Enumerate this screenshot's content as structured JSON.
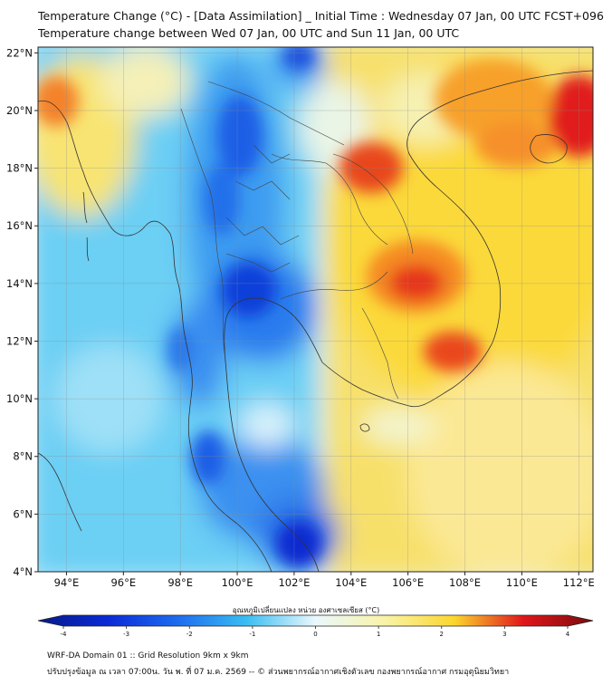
{
  "title_line1": "Temperature Change (°C) - [Data Assimilation] _ Initial Time : Wednesday 07 Jan, 00 UTC FCST+096",
  "title_line2": "Temperature change between Wed 07 Jan, 00 UTC and Sun 11 Jan, 00 UTC",
  "map": {
    "lon_range": [
      93,
      112.5
    ],
    "lat_range": [
      4,
      22.2
    ],
    "lat_ticks": [
      "4°N",
      "6°N",
      "8°N",
      "10°N",
      "12°N",
      "14°N",
      "16°N",
      "18°N",
      "20°N",
      "22°N"
    ],
    "lon_ticks": [
      "94°E",
      "96°E",
      "98°E",
      "100°E",
      "102°E",
      "104°E",
      "106°E",
      "108°E",
      "110°E",
      "112°E"
    ],
    "grid": true,
    "field_colors": [
      "#0b2ad6",
      "#1e6bef",
      "#39bdf2",
      "#d7f3fb",
      "#f9f3a7",
      "#fbd62e",
      "#f58a22",
      "#e0161b"
    ]
  },
  "colorbar": {
    "label": "อุณหภูมิเปลี่ยนแปลง หน่วย องศาเซลเซียส (°C)",
    "ticks": [
      "-4",
      "-3",
      "-2",
      "-1",
      "0",
      "1",
      "2",
      "3",
      "4"
    ],
    "range": [
      -4,
      4
    ]
  },
  "footer_line1": "WRF-DA Domain 01 :: Grid Resolution 9km x 9km",
  "footer_line2": "ปรับปรุงข้อมูล ณ เวลา 07:00น. วัน พ. ที่ 07 ม.ค. 2569 -- © ส่วนพยากรณ์อากาศเชิงตัวเลข กองพยากรณ์อากาศ กรมอุตุนิยมวิทยา"
}
